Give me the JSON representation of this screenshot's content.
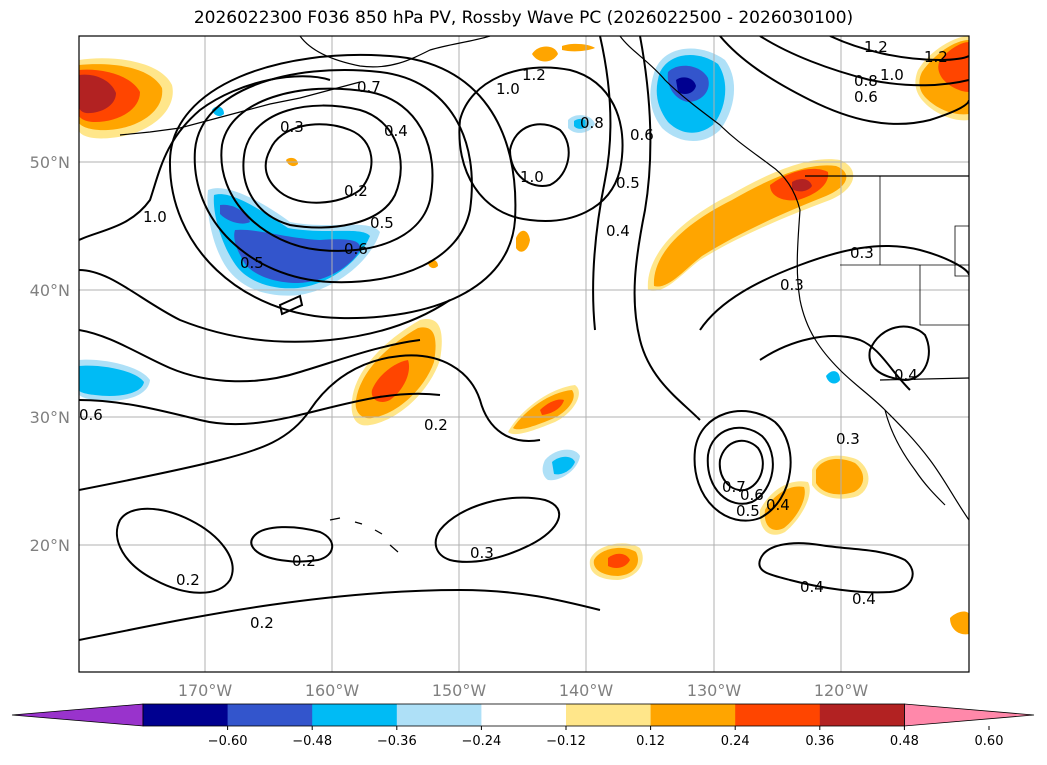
{
  "title": "2026022300 F036 850 hPa PV, Rossby Wave PC (2026022500 - 2026030100)",
  "lat_labels": [
    "50°N",
    "40°N",
    "30°N",
    "20°N"
  ],
  "lon_labels": [
    "170°W",
    "160°W",
    "150°W",
    "140°W",
    "130°W",
    "120°W"
  ],
  "colorbar": {
    "ticks": [
      "−0.60",
      "−0.48",
      "−0.36",
      "−0.24",
      "−0.12",
      "0.12",
      "0.24",
      "0.36",
      "0.48",
      "0.60"
    ],
    "colors": [
      "#9933cc",
      "#000090",
      "#3355cc",
      "#00bbf5",
      "#aee0f7",
      "#ffffff",
      "#ffe68a",
      "#ffa500",
      "#ff4500",
      "#b22222",
      "#ff88aa"
    ]
  },
  "contour_labels": [
    "0.7",
    "0.3",
    "0.4",
    "0.2",
    "0.5",
    "0.6",
    "0.5",
    "1.0",
    "1.2",
    "1.0",
    "0.8",
    "1.0",
    "0.6",
    "0.5",
    "0.4",
    "1.2",
    "1.0",
    "1.2",
    "0.8",
    "0.6",
    "0.3",
    "0.3",
    "0.4",
    "0.2",
    "0.6",
    "0.3",
    "0.3",
    "0.7",
    "0.6",
    "0.5",
    "0.4",
    "0.4",
    "0.4",
    "0.2",
    "0.2",
    "0.2"
  ],
  "colors": {
    "grid": "#b0b0b0",
    "axis_label": "#808080",
    "contour": "#000000"
  }
}
